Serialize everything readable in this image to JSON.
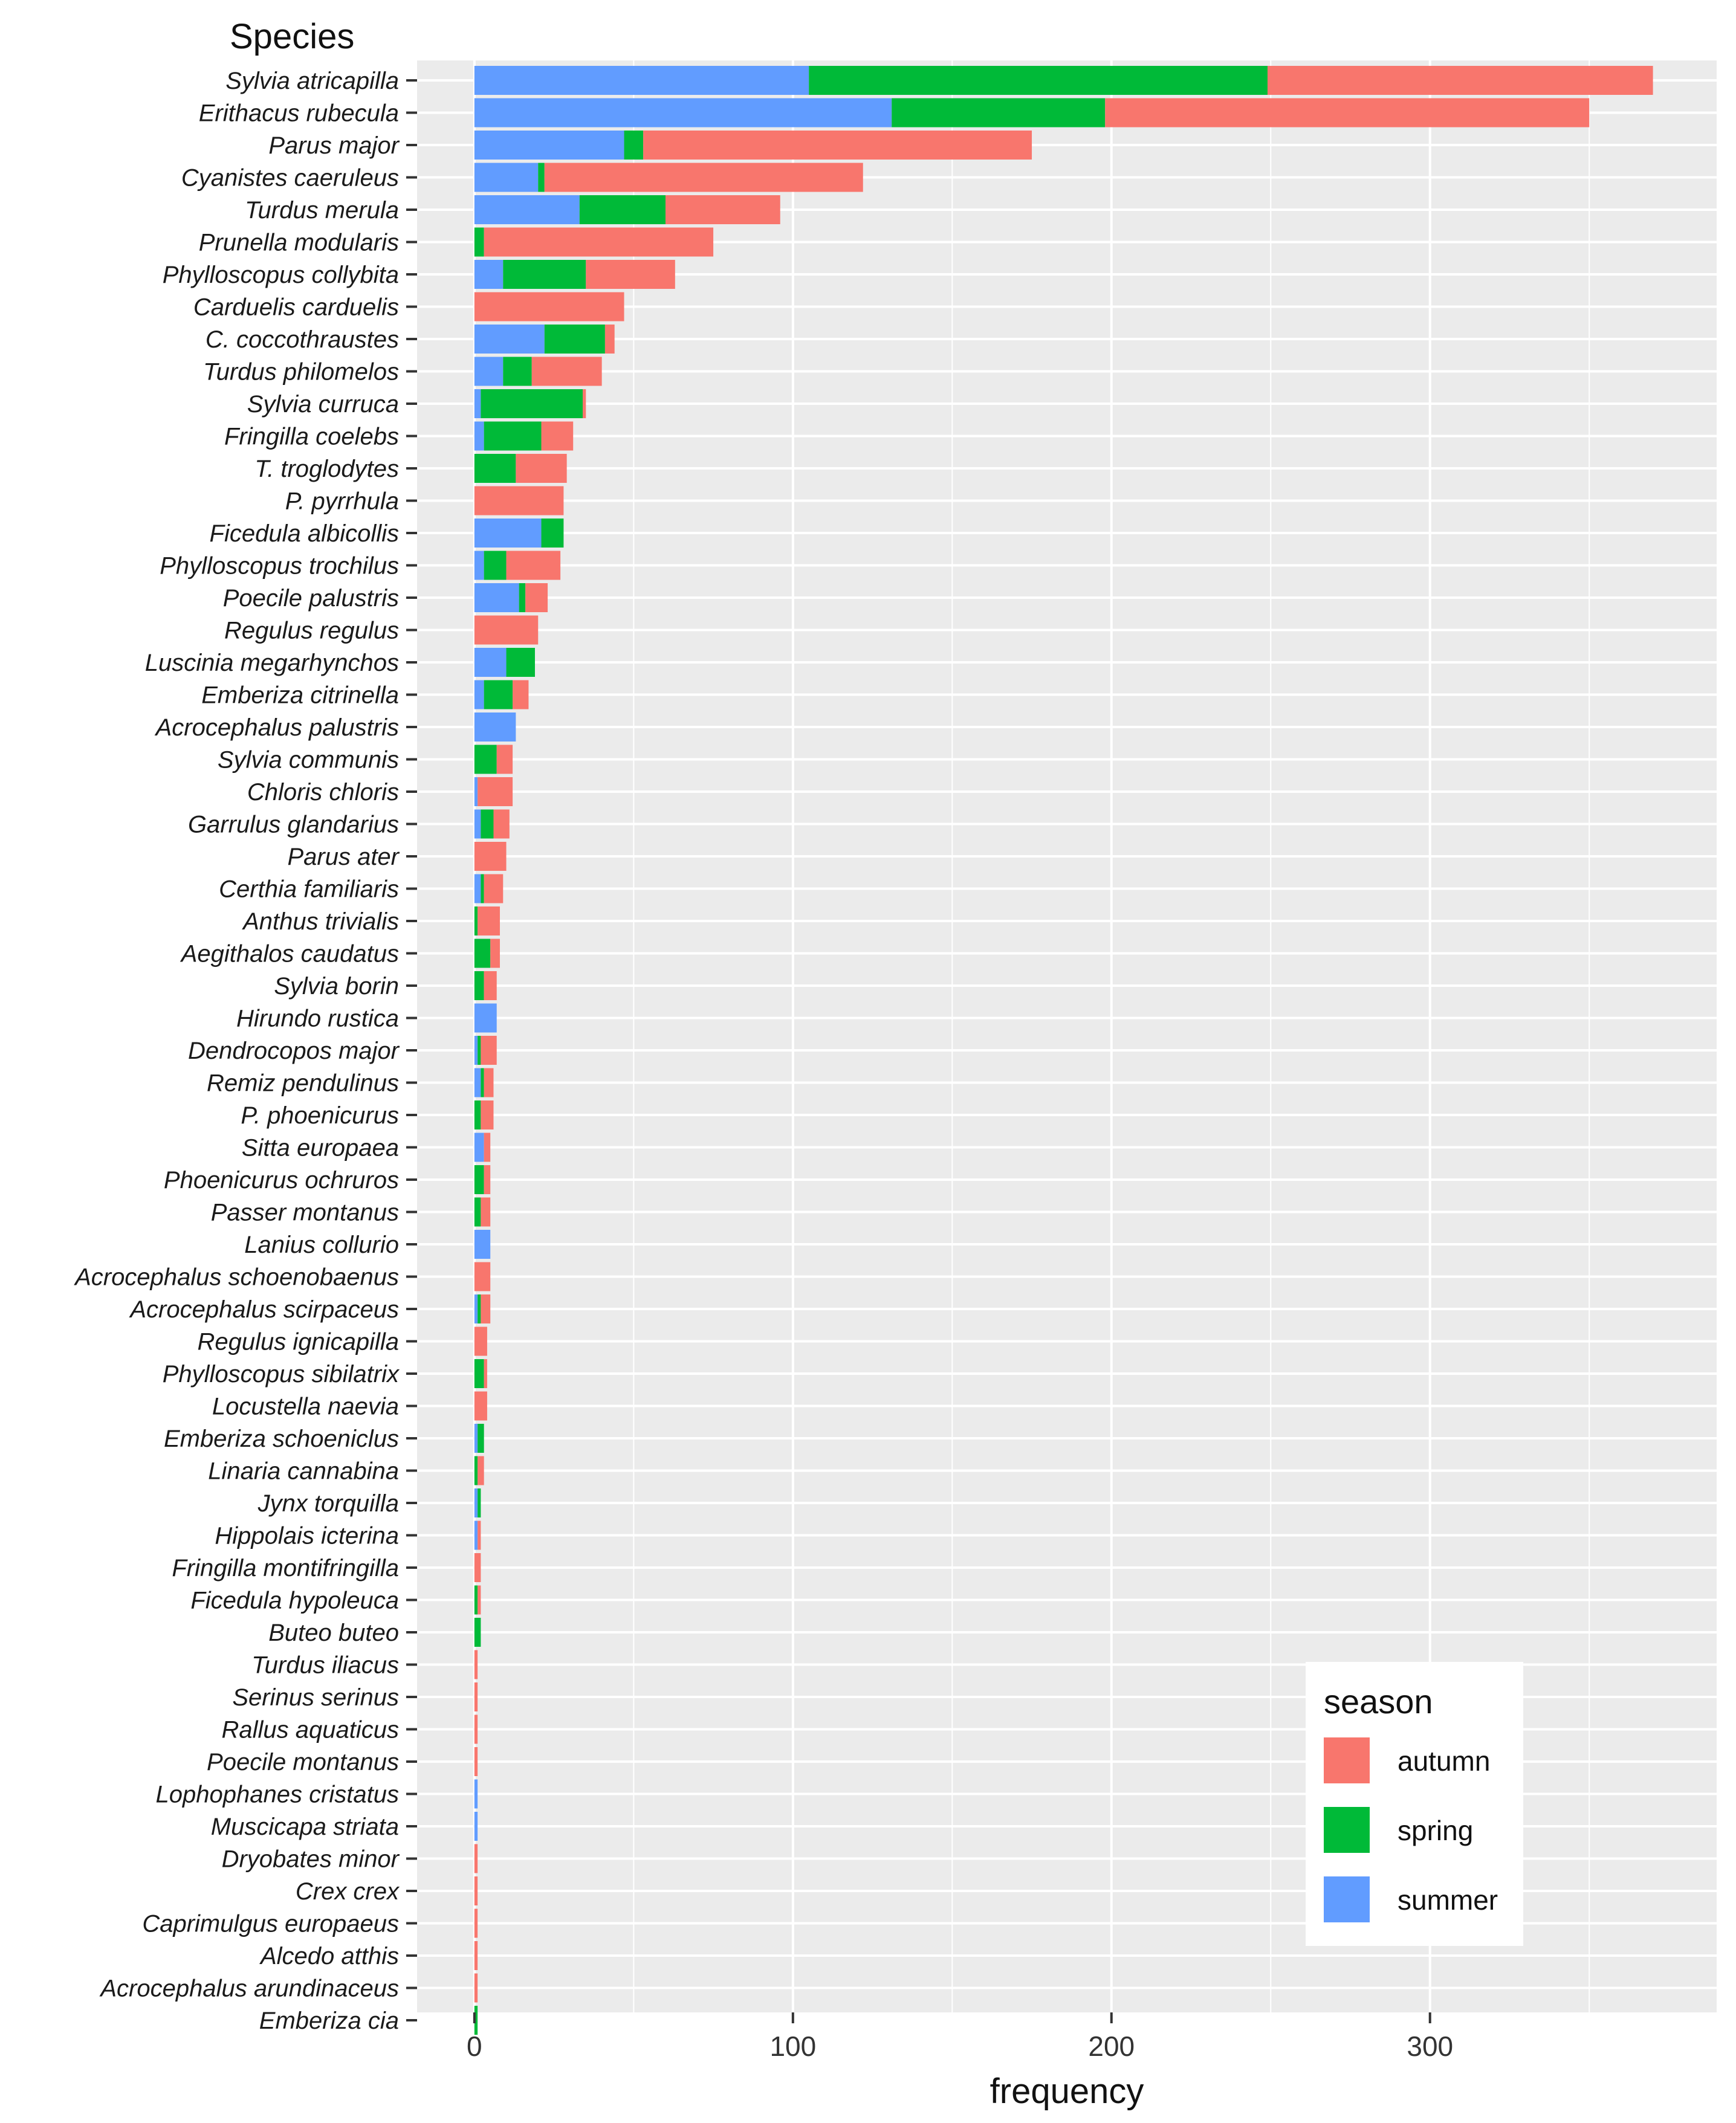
{
  "chart_data": {
    "type": "bar",
    "orientation": "horizontal",
    "stacked": true,
    "title": "",
    "ylabel": "Species",
    "xlabel": "frequency",
    "xlim": [
      -18,
      390
    ],
    "xticks": [
      0,
      100,
      200,
      300
    ],
    "grid": true,
    "legend": {
      "title": "season",
      "position": "bottom-right",
      "entries": [
        "autumn",
        "spring",
        "summer"
      ]
    },
    "colors": {
      "autumn": "#F8766D",
      "spring": "#00BA38",
      "summer": "#619CFF",
      "panel": "#EBEBEB",
      "grid": "#FFFFFF"
    },
    "stack_order": [
      "summer",
      "spring",
      "autumn"
    ],
    "categories": [
      "Sylvia atricapilla",
      "Erithacus rubecula",
      "Parus major",
      "Cyanistes caeruleus",
      "Turdus merula",
      "Prunella modularis",
      "Phylloscopus collybita",
      "Carduelis carduelis",
      "C. coccothraustes",
      "Turdus philomelos",
      "Sylvia curruca",
      "Fringilla coelebs",
      "T. troglodytes",
      "P. pyrrhula",
      "Ficedula albicollis",
      "Phylloscopus trochilus",
      "Poecile palustris",
      "Regulus regulus",
      "Luscinia megarhynchos",
      "Emberiza citrinella",
      "Acrocephalus palustris",
      "Sylvia communis",
      "Chloris chloris",
      "Garrulus glandarius",
      "Parus ater",
      "Certhia familiaris",
      "Anthus trivialis",
      "Aegithalos caudatus",
      "Sylvia borin",
      "Hirundo rustica",
      "Dendrocopos major",
      "Remiz pendulinus",
      "P. phoenicurus",
      "Sitta europaea",
      "Phoenicurus ochruros",
      "Passer montanus",
      "Lanius collurio",
      "Acrocephalus schoenobaenus",
      "Acrocephalus scirpaceus",
      "Regulus ignicapilla",
      "Phylloscopus sibilatrix",
      "Locustella naevia",
      "Emberiza schoeniclus",
      "Linaria cannabina",
      "Jynx torquilla",
      "Hippolais icterina",
      "Fringilla montifringilla",
      "Ficedula hypoleuca",
      "Buteo buteo",
      "Turdus iliacus",
      "Serinus serinus",
      "Rallus aquaticus",
      "Poecile montanus",
      "Lophophanes cristatus",
      "Muscicapa striata",
      "Dryobates minor",
      "Crex crex",
      "Caprimulgus europaeus",
      "Alcedo atthis",
      "Acrocephalus arundinaceus",
      "Emberiza cia"
    ],
    "series": [
      {
        "name": "summer",
        "values": [
          105,
          131,
          47,
          20,
          33,
          0,
          9,
          0,
          22,
          9,
          2,
          3,
          0,
          0,
          21,
          3,
          14,
          0,
          10,
          3,
          13,
          0,
          1,
          2,
          0,
          2,
          0,
          0,
          0,
          7,
          1,
          2,
          0,
          3,
          0,
          0,
          5,
          0,
          1,
          0,
          0,
          0,
          1,
          0,
          1,
          1,
          0,
          0,
          0,
          0,
          0,
          0,
          0,
          1,
          1,
          0,
          0,
          0,
          0,
          0,
          0
        ]
      },
      {
        "name": "spring",
        "values": [
          144,
          67,
          6,
          2,
          27,
          3,
          26,
          0,
          19,
          9,
          32,
          18,
          13,
          0,
          7,
          7,
          2,
          0,
          9,
          9,
          0,
          7,
          0,
          4,
          0,
          1,
          1,
          5,
          3,
          0,
          1,
          1,
          2,
          0,
          3,
          2,
          0,
          0,
          1,
          0,
          3,
          0,
          2,
          1,
          1,
          0,
          0,
          1,
          2,
          0,
          0,
          0,
          0,
          0,
          0,
          0,
          0,
          0,
          0,
          0,
          1
        ]
      },
      {
        "name": "autumn",
        "values": [
          121,
          152,
          122,
          100,
          36,
          72,
          28,
          47,
          3,
          22,
          1,
          10,
          16,
          28,
          0,
          17,
          7,
          20,
          0,
          5,
          0,
          5,
          11,
          5,
          10,
          6,
          7,
          3,
          4,
          0,
          5,
          3,
          4,
          2,
          2,
          3,
          0,
          5,
          3,
          4,
          1,
          4,
          0,
          2,
          0,
          1,
          2,
          1,
          0,
          1,
          1,
          1,
          1,
          0,
          0,
          1,
          1,
          1,
          1,
          1,
          0
        ]
      }
    ]
  }
}
